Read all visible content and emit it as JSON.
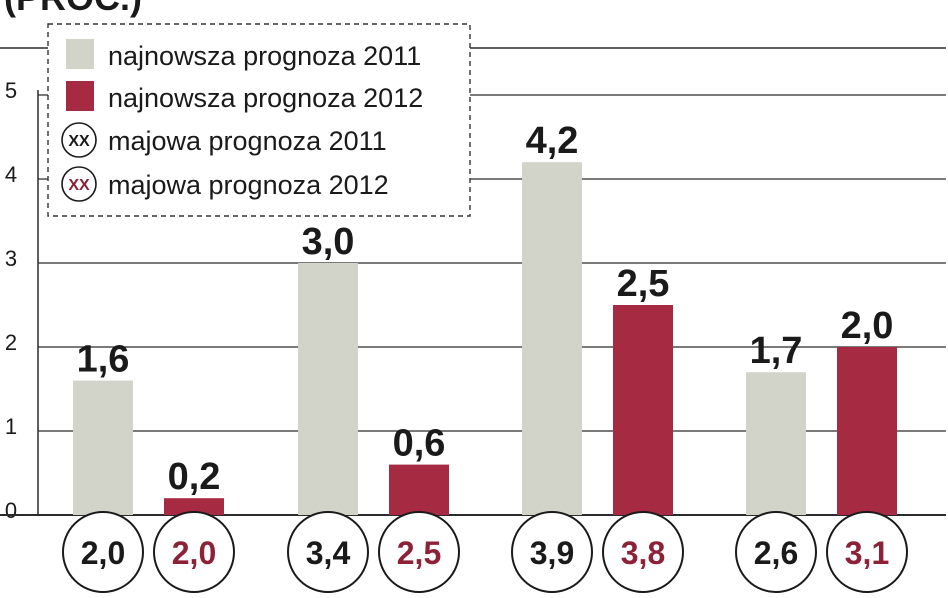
{
  "header_fragment": "(PROC.)",
  "chart_data": {
    "type": "bar",
    "title": "",
    "xlabel": "",
    "ylabel": "",
    "ylim": [
      0,
      5
    ],
    "yticks": [
      "0",
      "1",
      "2",
      "3",
      "4",
      "5"
    ],
    "grid": true,
    "legend_position": "top-left",
    "series": [
      {
        "name": "najnowsza prognoza 2011",
        "color": "#d3d4c9",
        "values": [
          1.6,
          3.0,
          4.2,
          1.7
        ],
        "labels": [
          "1,6",
          "3,0",
          "4,2",
          "1,7"
        ]
      },
      {
        "name": "najnowsza prognoza 2012",
        "color": "#a62a42",
        "values": [
          0.2,
          0.6,
          2.5,
          2.0
        ],
        "labels": [
          "0,2",
          "0,6",
          "2,5",
          "2,0"
        ]
      }
    ],
    "may_forecasts": [
      {
        "name": "majowa prognoza 2011",
        "color": "#1a1a1a",
        "values": [
          2.0,
          3.4,
          3.9,
          2.6
        ],
        "labels": [
          "2,0",
          "3,4",
          "3,9",
          "2,6"
        ]
      },
      {
        "name": "majowa prognoza 2012",
        "color": "#8c2138",
        "values": [
          2.0,
          2.5,
          3.8,
          3.1
        ],
        "labels": [
          "2,0",
          "2,5",
          "3,8",
          "3,1"
        ]
      }
    ],
    "legend_marker_text": "XX"
  }
}
